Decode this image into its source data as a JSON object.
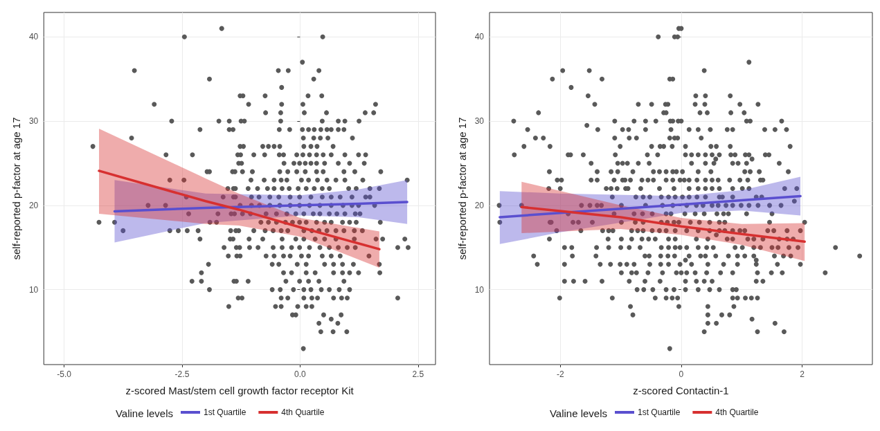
{
  "chart_data": [
    {
      "type": "scatter",
      "xlabel": "z-scored Mast/stem cell growth factor receptor Kit",
      "ylabel": "self-reported p-factor at age 17",
      "legend_title": "Valine levels",
      "legend": "bottom",
      "grid": true,
      "xlim": [
        -5.43,
        2.87
      ],
      "ylim": [
        1.1,
        42.9
      ],
      "xticks": [
        {
          "value": -5,
          "label": "-5.0"
        },
        {
          "value": -2.5,
          "label": "-2.5"
        },
        {
          "value": 0,
          "label": "0.0"
        },
        {
          "value": 2.5,
          "label": "2.5"
        }
      ],
      "yticks": [
        10,
        20,
        30,
        40
      ],
      "series": [
        {
          "marker": "circle",
          "color": "#595959",
          "x": [
            -1.66,
            -2.45,
            0.48,
            0.05,
            -3.51,
            -0.46,
            -0.25,
            0.4,
            -1.92,
            0.29,
            -0.39,
            -1.27,
            -1.21,
            -0.74,
            0.17,
            0.46,
            -3.09,
            -1.09,
            -0.39,
            0.06,
            1.6,
            -0.73,
            -0.41,
            0.09,
            0.56,
            1.38,
            1.56,
            -2.72,
            -1.72,
            -1.5,
            -1.25,
            -1.18,
            -0.41,
            0.47,
            0.81,
            0.95,
            1.25,
            -2.12,
            -1.5,
            -1.42,
            -0.44,
            -0.22,
            0.05,
            0.18,
            0.3,
            0.44,
            0.57,
            0.66,
            0.81,
            0.93,
            -3.57,
            0.07,
            0.29,
            0.43,
            0.59,
            1.11,
            -4.39,
            -1.27,
            -1.2,
            -0.79,
            -0.67,
            -0.55,
            -0.43,
            0.08,
            0.23,
            0.36,
            0.7,
            -2.84,
            -2.28,
            -1.32,
            -1.26,
            -0.98,
            -0.75,
            -0.44,
            -0.35,
            -0.07,
            0.06,
            0.2,
            0.35,
            0.49,
            0.66,
            0.95,
            1.24,
            1.39,
            -1.3,
            -1.24,
            -0.34,
            -0.13,
            -0.01,
            0.11,
            0.23,
            0.35,
            0.52,
            0.81,
            1.05,
            1.36,
            -1.97,
            -1.92,
            -1.43,
            -1.38,
            -1.22,
            -1.01,
            -0.43,
            -0.26,
            -0.07,
            0.11,
            0.35,
            0.49,
            0.93,
            1.16,
            1.71,
            -2.76,
            -2.46,
            -1.04,
            -0.76,
            -0.55,
            -0.4,
            -0.28,
            0.03,
            0.18,
            0.37,
            0.57,
            0.76,
            0.95,
            1.33,
            2.27,
            -1.53,
            -1.41,
            -1.37,
            -1.1,
            -0.9,
            -0.69,
            -0.55,
            -0.38,
            -0.23,
            -0.04,
            0.13,
            0.3,
            0.47,
            0.62,
            1.03,
            1.19,
            1.48,
            1.68,
            -2.41,
            -1.63,
            -1.41,
            -1.37,
            -1.03,
            -0.87,
            -0.64,
            -0.45,
            -0.21,
            -0.01,
            0.23,
            0.47,
            0.66,
            0.85,
            1.1,
            1.39,
            1.48,
            -3.22,
            -2.85,
            -1.27,
            -1.03,
            -0.86,
            -0.64,
            -0.43,
            -0.21,
            -0.01,
            0.2,
            0.42,
            0.66,
            0.91,
            1.1,
            1.24,
            1.58,
            -2.36,
            -1.74,
            -1.46,
            -1.39,
            -1.22,
            -1.05,
            -0.72,
            -0.5,
            -0.28,
            -0.09,
            0.08,
            0.28,
            0.42,
            0.62,
            0.78,
            0.95,
            1.17,
            1.27,
            -4.26,
            -3.93,
            -1.91,
            -1.77,
            -0.83,
            -0.67,
            -0.5,
            -0.31,
            -0.16,
            -0.01,
            0.13,
            0.35,
            0.52,
            0.66,
            0.9,
            1.05,
            1.19,
            1.7,
            -3.75,
            -2.76,
            -2.58,
            -2.39,
            -2.16,
            -1.47,
            -1.36,
            -1.3,
            -0.98,
            -0.74,
            -0.57,
            -0.4,
            -0.26,
            0.08,
            0.25,
            0.4,
            0.57,
            0.76,
            0.93,
            1.15,
            1.32,
            -2.12,
            -1.48,
            -1.42,
            -1.08,
            -0.79,
            -0.38,
            -0.09,
            0.08,
            0.32,
            0.52,
            0.76,
            1.15,
            1.61,
            1.75,
            2.22,
            -1.61,
            -1.35,
            -1.28,
            -1.07,
            -0.89,
            -0.57,
            -0.38,
            -0.18,
            -0.01,
            0.2,
            0.42,
            0.62,
            0.81,
            1.0,
            1.17,
            2.07,
            2.29,
            -1.52,
            -1.34,
            -1.27,
            -0.72,
            -0.55,
            -0.35,
            -0.21,
            0.03,
            0.18,
            0.47,
            0.66,
            0.85,
            1.46,
            -1.94,
            -0.59,
            -0.45,
            -0.06,
            0.13,
            0.52,
            0.71,
            0.9,
            1.13,
            1.68,
            -2.09,
            -0.35,
            -0.18,
            0.13,
            0.32,
            0.71,
            0.9,
            1.05,
            1.24,
            1.69,
            -2.29,
            -2.09,
            -1.4,
            -1.35,
            -1.1,
            -0.3,
            -0.01,
            0.18,
            0.4,
            0.93,
            -1.92,
            -0.59,
            -0.42,
            -0.14,
            0.08,
            0.23,
            0.45,
            0.62,
            0.83,
            1.05,
            -1.31,
            -1.23,
            -0.4,
            -0.26,
            0.08,
            0.25,
            0.37,
            0.71,
            0.88,
            1.0,
            2.07,
            -1.51,
            -0.52,
            -0.4,
            -0.05,
            0.13,
            0.25,
            -0.16,
            -0.09,
            0.5,
            0.87,
            0.66,
            0.4,
            0.8,
            0.44,
            0.7,
            0.99,
            0.07
          ],
          "values": [
            41,
            40,
            40,
            37,
            36,
            36,
            36,
            36,
            35,
            35,
            34,
            33,
            33,
            33,
            33,
            33,
            32,
            32,
            32,
            32,
            32,
            31,
            31,
            31,
            31,
            31,
            31,
            30,
            30,
            30,
            30,
            30,
            30,
            30,
            30,
            30,
            30,
            29,
            29,
            29,
            29,
            29,
            29,
            29,
            29,
            29,
            29,
            29,
            29,
            29,
            28,
            28,
            28,
            28,
            28,
            28,
            27,
            27,
            27,
            27,
            27,
            27,
            27,
            27,
            27,
            27,
            27,
            26,
            26,
            26,
            26,
            26,
            26,
            26,
            26,
            26,
            26,
            26,
            26,
            26,
            26,
            26,
            26,
            26,
            25,
            25,
            25,
            25,
            25,
            25,
            25,
            25,
            25,
            25,
            25,
            25,
            24,
            24,
            24,
            24,
            24,
            24,
            24,
            24,
            24,
            24,
            24,
            24,
            24,
            24,
            24,
            23,
            23,
            23,
            23,
            23,
            23,
            23,
            23,
            23,
            23,
            23,
            23,
            23,
            23,
            23,
            22,
            22,
            22,
            22,
            22,
            22,
            22,
            22,
            22,
            22,
            22,
            22,
            22,
            22,
            22,
            22,
            22,
            22,
            21,
            21,
            21,
            21,
            21,
            21,
            21,
            21,
            21,
            21,
            21,
            21,
            21,
            21,
            21,
            21,
            21,
            20,
            20,
            20,
            20,
            20,
            20,
            20,
            20,
            20,
            20,
            20,
            20,
            20,
            20,
            20,
            20,
            19,
            19,
            19,
            19,
            19,
            19,
            19,
            19,
            19,
            19,
            19,
            19,
            19,
            19,
            19,
            19,
            19,
            19,
            18,
            18,
            18,
            18,
            18,
            18,
            18,
            18,
            18,
            18,
            18,
            18,
            18,
            18,
            18,
            18,
            18,
            18,
            17,
            17,
            17,
            17,
            17,
            17,
            17,
            17,
            17,
            17,
            17,
            17,
            17,
            17,
            17,
            17,
            17,
            17,
            17,
            17,
            17,
            16,
            16,
            16,
            16,
            16,
            16,
            16,
            16,
            16,
            16,
            16,
            16,
            16,
            16,
            16,
            15,
            15,
            15,
            15,
            15,
            15,
            15,
            15,
            15,
            15,
            15,
            15,
            15,
            15,
            15,
            15,
            15,
            14,
            14,
            14,
            14,
            14,
            14,
            14,
            14,
            14,
            14,
            14,
            14,
            14,
            13,
            13,
            13,
            13,
            13,
            13,
            13,
            13,
            13,
            13,
            12,
            12,
            12,
            12,
            12,
            12,
            12,
            12,
            12,
            12,
            11,
            11,
            11,
            11,
            11,
            11,
            11,
            11,
            11,
            11,
            10,
            10,
            10,
            10,
            10,
            10,
            10,
            10,
            10,
            10,
            9,
            9,
            9,
            9,
            9,
            9,
            9,
            9,
            9,
            9,
            9,
            8,
            8,
            8,
            8,
            8,
            8,
            7,
            7,
            7,
            7,
            6.5,
            6,
            6,
            5,
            5,
            5,
            3
          ]
        },
        {
          "type": "line",
          "name": "1st Quartile",
          "color": "#5a4fcf",
          "x": [
            -3.93,
            -2,
            0,
            1.24,
            2.27
          ],
          "values": [
            19.3,
            19.7,
            20.0,
            20.2,
            20.4
          ],
          "lower": [
            15.6,
            17.9,
            18.8,
            18.6,
            17.8
          ],
          "upper": [
            23.0,
            21.4,
            21.2,
            21.9,
            23.0
          ]
        },
        {
          "type": "line",
          "name": "4th Quartile",
          "color": "#d73030",
          "x": [
            -4.26,
            -2,
            -1.3,
            0,
            1.68
          ],
          "values": [
            24.1,
            20.5,
            19.5,
            17.4,
            14.8
          ],
          "lower": [
            19.0,
            17.8,
            17.6,
            16.3,
            12.6
          ],
          "upper": [
            29.1,
            23.2,
            21.4,
            18.5,
            16.9
          ]
        }
      ]
    },
    {
      "type": "scatter",
      "xlabel": "z-scored Contactin-1",
      "ylabel": "self-reported p-factor at age 17",
      "legend_title": "Valine levels",
      "legend": "bottom",
      "grid": true,
      "xlim": [
        -3.17,
        3.16
      ],
      "ylim": [
        1.1,
        42.9
      ],
      "xticks": [
        -2,
        0,
        2
      ],
      "yticks": [
        10,
        20,
        30,
        40
      ],
      "series": [
        {
          "marker": "circle",
          "color": "#595959",
          "x": [
            -0.04,
            0.0,
            -0.38,
            -0.11,
            -0.06,
            1.12,
            -1.96,
            -1.52,
            0.38,
            -2.13,
            -1.31,
            -0.19,
            -0.14,
            -1.82,
            -1.54,
            0.24,
            0.4,
            0.81,
            -1.43,
            -0.71,
            -0.49,
            -0.26,
            -0.22,
            0.23,
            0.39,
            0.97,
            1.27,
            -2.36,
            -0.29,
            -0.25,
            0.31,
            0.43,
            0.82,
            1.04,
            -2.77,
            -1.1,
            -0.78,
            -0.59,
            -0.42,
            -0.18,
            -0.14,
            -0.05,
            0.0,
            1.08,
            1.14,
            1.66,
            -1.56,
            -2.54,
            -1.38,
            -0.97,
            -0.87,
            -0.59,
            -0.17,
            0.13,
            0.28,
            0.48,
            0.76,
            0.85,
            1.38,
            1.55,
            1.74,
            -2.41,
            -2.28,
            -1.1,
            -0.86,
            -0.74,
            -0.19,
            -0.11,
            -0.06,
            0.33,
            -2.6,
            -2.17,
            -1.01,
            -0.49,
            -0.35,
            -0.29,
            -0.15,
            0.07,
            0.49,
            0.58,
            0.81,
            1.8,
            -2.76,
            -1.87,
            -1.83,
            -1.62,
            -1.09,
            -0.56,
            -0.39,
            0.07,
            0.17,
            0.28,
            0.4,
            0.51,
            0.63,
            0.82,
            0.89,
            1.06,
            1.12,
            1.39,
            1.45,
            0.57,
            1.17,
            -1.49,
            -1.05,
            -0.97,
            -0.89,
            -0.71,
            -0.53,
            0.17,
            0.4,
            0.54,
            0.85,
            0.94,
            1.08,
            1.62,
            -2.18,
            -1.39,
            -1.16,
            -1.05,
            -0.8,
            -0.46,
            -0.36,
            -0.25,
            -0.14,
            -0.08,
            0.02,
            0.28,
            0.49,
            1.05,
            1.14,
            1.29,
            1.77,
            -2.05,
            -1.98,
            -1.49,
            -1.39,
            -1.11,
            -0.97,
            -0.93,
            -0.84,
            -0.65,
            -0.55,
            -0.46,
            -0.25,
            -0.14,
            -0.02,
            0.05,
            0.13,
            0.26,
            0.4,
            0.51,
            0.61,
            0.8,
            0.97,
            1.1,
            1.31,
            1.35,
            -2.19,
            -2.0,
            -1.24,
            -1.16,
            -1.06,
            -0.92,
            -0.88,
            -0.67,
            -0.36,
            -0.12,
            0.13,
            0.28,
            0.4,
            0.51,
            0.63,
            0.85,
            1.01,
            1.12,
            1.71,
            1.91,
            -1.14,
            -0.75,
            -0.63,
            -0.52,
            -0.33,
            -0.21,
            -0.1,
            0.02,
            0.13,
            0.26,
            0.4,
            0.63,
            0.68,
            0.85,
            1.24,
            1.33,
            1.87,
            -3.01,
            -2.64,
            -1.65,
            -1.51,
            -1.39,
            -1.32,
            -0.99,
            -0.59,
            -0.31,
            -0.14,
            0.09,
            0.25,
            0.36,
            0.51,
            0.61,
            0.74,
            0.85,
            0.99,
            1.12,
            1.27,
            1.46,
            1.65,
            -1.87,
            -1.11,
            -0.78,
            -0.64,
            -0.48,
            -0.25,
            -0.17,
            0.06,
            0.23,
            0.38,
            0.59,
            0.7,
            0.78,
            1.08,
            1.5,
            -3.0,
            -2.17,
            -2.15,
            -1.79,
            -1.7,
            -1.47,
            -0.99,
            -0.76,
            -0.63,
            -0.33,
            -0.23,
            -0.12,
            -0.04,
            0.15,
            0.3,
            0.47,
            0.63,
            0.72,
            1.46,
            2.04,
            -2.06,
            -1.66,
            -1.3,
            -1.2,
            -1.13,
            -0.82,
            -0.72,
            -0.63,
            -0.48,
            -0.36,
            -0.25,
            -0.1,
            0.09,
            0.28,
            0.47,
            0.63,
            0.72,
            0.85,
            0.97,
            1.05,
            1.43,
            1.53,
            1.75,
            1.97,
            0.58,
            -2.18,
            -1.21,
            -0.99,
            -0.82,
            -0.65,
            -0.54,
            -0.43,
            -0.21,
            -0.1,
            0.25,
            0.44,
            0.76,
            0.85,
            1.1,
            1.2,
            1.35,
            1.62,
            1.75,
            1.85,
            -1.93,
            -1.81,
            -1.4,
            -1.2,
            -1.0,
            -0.86,
            -0.68,
            -0.33,
            -0.21,
            -0.1,
            -0.02,
            0.09,
            0.28,
            0.42,
            0.53,
            0.89,
            1.01,
            1.2,
            1.31,
            1.5,
            1.6,
            1.78,
            1.93,
            2.55,
            -2.44,
            -1.8,
            -1.41,
            -0.6,
            -0.53,
            -0.34,
            -0.22,
            -0.11,
            0.13,
            0.32,
            0.4,
            0.57,
            0.78,
            0.93,
            1.05,
            1.2,
            1.54,
            1.69,
            1.81,
            2.95,
            0.07,
            1.24,
            -2.38,
            -1.93,
            -1.34,
            -1.17,
            -1.01,
            -0.9,
            -0.78,
            -0.52,
            -0.34,
            -0.21,
            -0.02,
            0.17,
            0.44,
            0.7,
            0.93,
            1.24,
            1.59,
            1.97,
            -0.99,
            -0.82,
            -0.74,
            -0.55,
            -0.31,
            -0.08,
            0.0,
            0.09,
            0.23,
            0.42,
            0.65,
            0.85,
            1.26,
            1.49,
            1.67,
            2.38,
            -1.93,
            -1.78,
            -1.59,
            -1.31,
            -0.86,
            -0.6,
            -0.35,
            0.07,
            0.25,
            0.38,
            0.51,
            1.24,
            1.35,
            -0.73,
            -0.62,
            -0.47,
            -0.25,
            -0.12,
            0.07,
            0.28,
            0.47,
            0.63,
            0.85,
            0.91,
            -2.01,
            -1.14,
            -0.43,
            -0.25,
            -0.15,
            -0.06,
            0.85,
            0.93,
            1.06,
            1.16,
            1.26,
            -0.84,
            -0.04,
            0.44,
            0.87,
            -0.8,
            0.44,
            0.67,
            0.8,
            1.17,
            0.44,
            0.58,
            1.55,
            0.38,
            1.26,
            1.7,
            -0.19
          ],
          "values": [
            41,
            41,
            40,
            40,
            40,
            37,
            36,
            36,
            36,
            35,
            35,
            35,
            35,
            34,
            33,
            33,
            33,
            33,
            32,
            32,
            32,
            32,
            32,
            32,
            32,
            32,
            32,
            31,
            31,
            31,
            31,
            31,
            31,
            31,
            30,
            30,
            30,
            30,
            30,
            30,
            30,
            30,
            30,
            30,
            30,
            30,
            29.5,
            29,
            29,
            29,
            29,
            29,
            29,
            29,
            29,
            29,
            29,
            29,
            29,
            29,
            29,
            28,
            28,
            28,
            28,
            28,
            28,
            28,
            28,
            28,
            27,
            27,
            27,
            27,
            27,
            27,
            27,
            27,
            27,
            27,
            27,
            27,
            26,
            26,
            26,
            26,
            26,
            26,
            26,
            26,
            26,
            26,
            26,
            26,
            26,
            26,
            26,
            26,
            26,
            26,
            26,
            25.5,
            25.5,
            25,
            25,
            25,
            25,
            25,
            25,
            25,
            25,
            25,
            25,
            25,
            25,
            25,
            24,
            24,
            24,
            24,
            24,
            24,
            24,
            24,
            24,
            24,
            24,
            24,
            24,
            24,
            24,
            24,
            24,
            23,
            23,
            23,
            23,
            23,
            23,
            23,
            23,
            23,
            23,
            23,
            23,
            23,
            23,
            23,
            23,
            23,
            23,
            23,
            23,
            23,
            23,
            23,
            23,
            23,
            22,
            22,
            22,
            22,
            22,
            22,
            22,
            22,
            22,
            22,
            22,
            22,
            22,
            22,
            22,
            22,
            22,
            22,
            22,
            22,
            21,
            21,
            21,
            21,
            21,
            21,
            21,
            21,
            21,
            21,
            21,
            21,
            21,
            21,
            21,
            21,
            20.5,
            20,
            20,
            20,
            20,
            20,
            20,
            20,
            20,
            20,
            20,
            20,
            20,
            20,
            20,
            20,
            20,
            20,
            20,
            20,
            20,
            20,
            20,
            19,
            19,
            19,
            19,
            19,
            19,
            19,
            19,
            19,
            19,
            19,
            19,
            19,
            19,
            19,
            18,
            18,
            18,
            18,
            18,
            18,
            18,
            18,
            18,
            18,
            18,
            18,
            18,
            18,
            18,
            18,
            18,
            18,
            18,
            18,
            17,
            17,
            17,
            17,
            17,
            17,
            17,
            17,
            17,
            17,
            17,
            17,
            17,
            17,
            17,
            17,
            17,
            17,
            17,
            17,
            17,
            17,
            17,
            17,
            16.5,
            16,
            16,
            16,
            16,
            16,
            16,
            16,
            16,
            16,
            16,
            16,
            16,
            16,
            16,
            16,
            16,
            16,
            16,
            16,
            15,
            15,
            15,
            15,
            15,
            15,
            15,
            15,
            15,
            15,
            15,
            15,
            15,
            15,
            15,
            15,
            15,
            15,
            15,
            15,
            15,
            15,
            15,
            15,
            14,
            14,
            14,
            14,
            14,
            14,
            14,
            14,
            14,
            14,
            14,
            14,
            14,
            14,
            14,
            14,
            14,
            14,
            14,
            14,
            13.5,
            13.5,
            13,
            13,
            13,
            13,
            13,
            13,
            13,
            13,
            13,
            13,
            13,
            13,
            13,
            13,
            13,
            13,
            13,
            13,
            12,
            12,
            12,
            12,
            12,
            12,
            12,
            12,
            12,
            12,
            12,
            12,
            12,
            12,
            12,
            12,
            11,
            11,
            11,
            11,
            11,
            11,
            11,
            11,
            11,
            11,
            11,
            11,
            11,
            10,
            10,
            10,
            10,
            10,
            10,
            10,
            10,
            10,
            10,
            10,
            9,
            9,
            9,
            9,
            9,
            9,
            9,
            9,
            9,
            9,
            9,
            8,
            8,
            8,
            8,
            7,
            7,
            7,
            7,
            6.5,
            6,
            6,
            6,
            5,
            5,
            5,
            3
          ]
        },
        {
          "type": "line",
          "name": "1st Quartile",
          "color": "#5a4fcf",
          "x": [
            -3.0,
            -2,
            0,
            1,
            1.97
          ],
          "values": [
            18.6,
            19.1,
            20.1,
            20.6,
            21.1
          ],
          "lower": [
            15.4,
            16.8,
            19.1,
            19.4,
            18.8
          ],
          "upper": [
            21.7,
            21.4,
            21.1,
            21.8,
            23.4
          ]
        },
        {
          "type": "line",
          "name": "4th Quartile",
          "color": "#d73030",
          "x": [
            -2.64,
            -1,
            0,
            1,
            2.04
          ],
          "values": [
            19.8,
            18.6,
            17.5,
            16.6,
            15.7
          ],
          "lower": [
            16.7,
            17.2,
            16.5,
            15.3,
            13.4
          ],
          "upper": [
            22.8,
            20.0,
            18.5,
            17.8,
            17.9
          ]
        }
      ]
    }
  ]
}
